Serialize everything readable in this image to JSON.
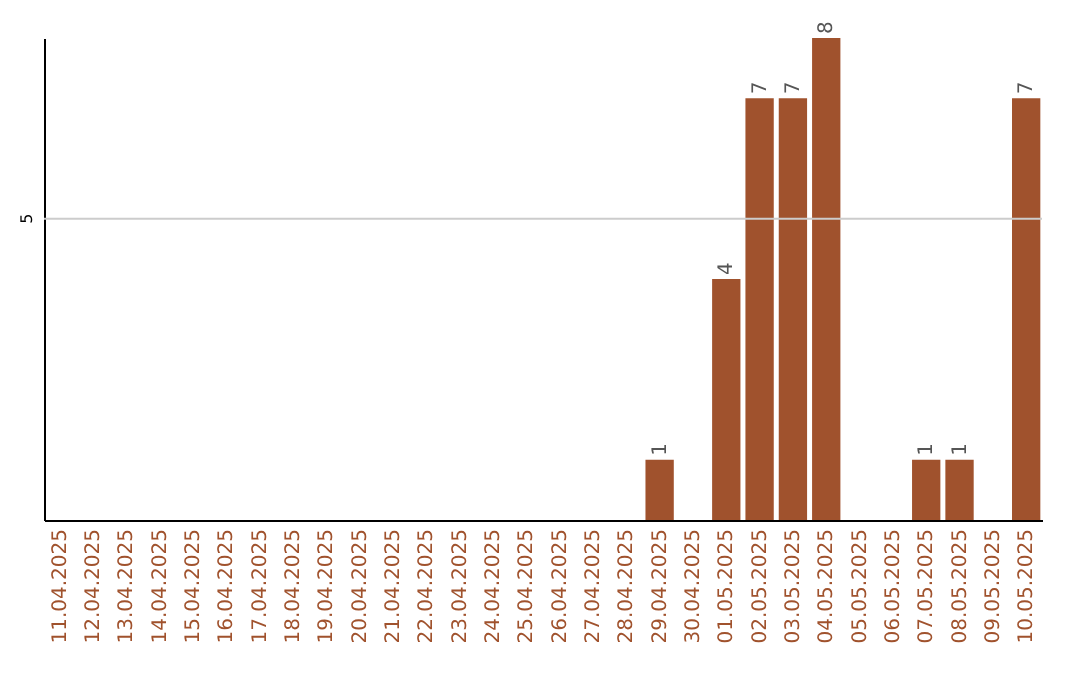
{
  "chart_data": {
    "type": "bar",
    "categories": [
      "11.04.2025",
      "12.04.2025",
      "13.04.2025",
      "14.04.2025",
      "15.04.2025",
      "16.04.2025",
      "17.04.2025",
      "18.04.2025",
      "19.04.2025",
      "20.04.2025",
      "21.04.2025",
      "22.04.2025",
      "23.04.2025",
      "24.04.2025",
      "25.04.2025",
      "26.04.2025",
      "27.04.2025",
      "28.04.2025",
      "29.04.2025",
      "30.04.2025",
      "01.05.2025",
      "02.05.2025",
      "03.05.2025",
      "04.05.2025",
      "05.05.2025",
      "06.05.2025",
      "07.05.2025",
      "08.05.2025",
      "09.05.2025",
      "10.05.2025"
    ],
    "values": [
      null,
      null,
      null,
      null,
      null,
      null,
      null,
      null,
      null,
      null,
      null,
      null,
      null,
      null,
      null,
      null,
      null,
      null,
      1,
      null,
      4,
      7,
      7,
      8,
      null,
      null,
      1,
      1,
      null,
      7
    ],
    "data_labels": true,
    "color": "#a0522d",
    "ref_lines": [
      {
        "axis": "y",
        "value": 5,
        "label": "5",
        "color": "#cccccc"
      }
    ]
  }
}
